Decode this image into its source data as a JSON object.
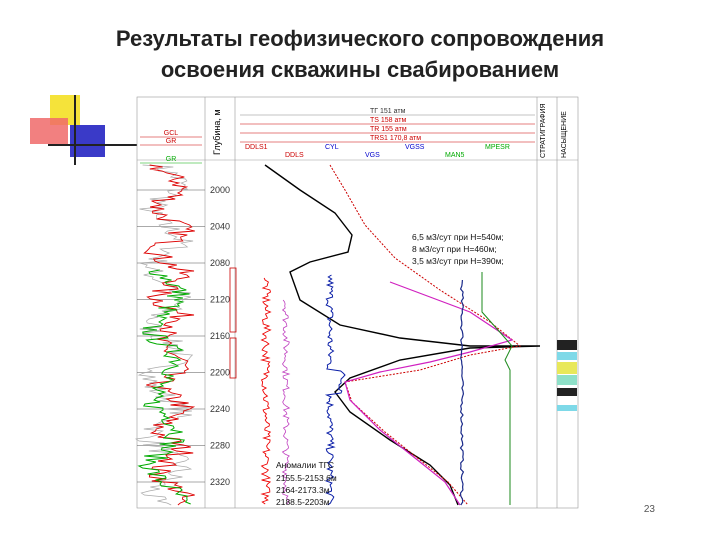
{
  "title": [
    "Результаты геофизического сопровождения",
    "освоения скважины свабированием"
  ],
  "log": {
    "depth_label": "Глубина, м",
    "depths": [
      "2000",
      "2040",
      "2080",
      "2120",
      "2160",
      "2200",
      "2240",
      "2280",
      "2320"
    ],
    "left_track_curves": [
      "GCL",
      "GR",
      "GR"
    ],
    "pressure_curves": [
      "ТГ 151 атм",
      "TS 158 атм",
      "TR 155 атм",
      "TRS1 170,8 атм"
    ],
    "flow_curves": [
      "DDLS1",
      "DDLS",
      "CYL",
      "VGS",
      "VGSS",
      "MAN5",
      "MPESR"
    ],
    "columns": [
      "СТРАТИГРАФИЯ",
      "НАСЫЩЕНИЕ"
    ],
    "inflow_notes": [
      "6,5 м3/сут при Н=540м;",
      "8 м3/сут при Н=460м;",
      "3,5 м3/сут при Н=390м;"
    ],
    "anomaly": {
      "title": "Аномалии ТГС",
      "intervals": [
        "2155.5-2153.6м",
        "2164-2173.3м",
        "2188.5-2203м"
      ]
    }
  },
  "page_number": "23"
}
